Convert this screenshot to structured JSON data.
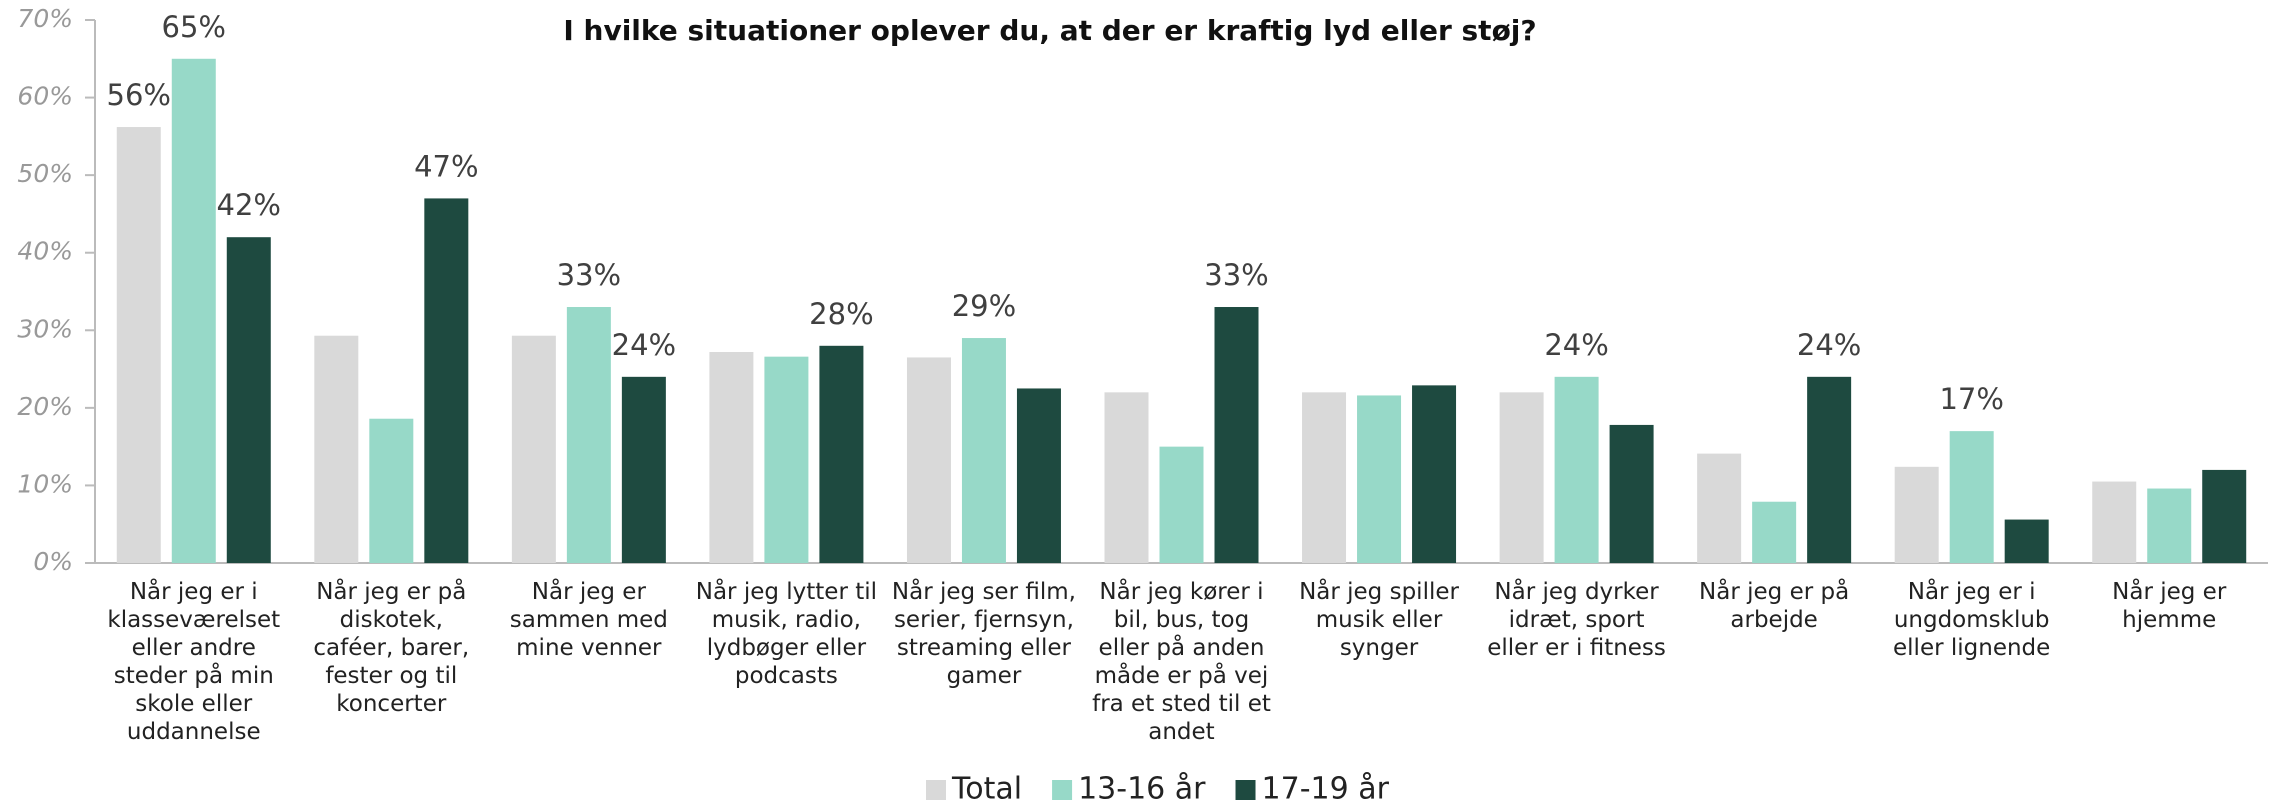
{
  "chart_data": {
    "type": "bar",
    "title": "I hvilke situationer oplever du, at der er kraftig lyd eller støj?",
    "categories": [
      "Når jeg er i klasseværelset eller andre steder på min skole eller uddannelse",
      "Når jeg er på diskotek, caféer, barer, fester og til koncerter",
      "Når jeg er sammen med mine venner",
      "Når jeg lytter til musik, radio, lydbøger eller podcasts",
      "Når jeg ser film, serier, fjernsyn, streaming eller gamer",
      "Når jeg kører i bil, bus, tog eller på anden måde er på vej fra et sted til et andet",
      "Når jeg spiller musik eller synger",
      "Når jeg dyrker idræt, sport eller er i fitness",
      "Når jeg er på arbejde",
      "Når jeg er i ungdomsklub eller lignende",
      "Når jeg er hjemme"
    ],
    "series": [
      {
        "name": "Total",
        "color": "#d9d9d9",
        "values": [
          56.2,
          29.3,
          29.3,
          27.2,
          26.5,
          22,
          22,
          22,
          14.1,
          12.4,
          10.5
        ],
        "value_labels": [
          "56%",
          null,
          null,
          null,
          null,
          null,
          null,
          null,
          null,
          null,
          null
        ]
      },
      {
        "name": "13-16 år",
        "color": "#97d9c8",
        "values": [
          65,
          18.6,
          33,
          26.6,
          29,
          15,
          21.6,
          24,
          7.9,
          17,
          9.6
        ],
        "value_labels": [
          "65%",
          null,
          "33%",
          null,
          "29%",
          null,
          null,
          "24%",
          null,
          "17%",
          null
        ]
      },
      {
        "name": "17-19 år",
        "color": "#1e4a40",
        "values": [
          42,
          47,
          24,
          28,
          22.5,
          33,
          22.9,
          17.8,
          24,
          5.6,
          12
        ],
        "value_labels": [
          "42%",
          "47%",
          "24%",
          "28%",
          null,
          "33%",
          null,
          null,
          "24%",
          null,
          null
        ]
      }
    ],
    "ylim": [
      0,
      70
    ],
    "yticks": [
      {
        "value": 0,
        "label": "0%"
      },
      {
        "value": 10,
        "label": "10%"
      },
      {
        "value": 20,
        "label": "20%"
      },
      {
        "value": 30,
        "label": "30%"
      },
      {
        "value": 40,
        "label": "40%"
      },
      {
        "value": 50,
        "label": "50%"
      },
      {
        "value": 60,
        "label": "60%"
      },
      {
        "value": 70,
        "label": "70%"
      }
    ],
    "grid": false,
    "legend": "bottom"
  }
}
